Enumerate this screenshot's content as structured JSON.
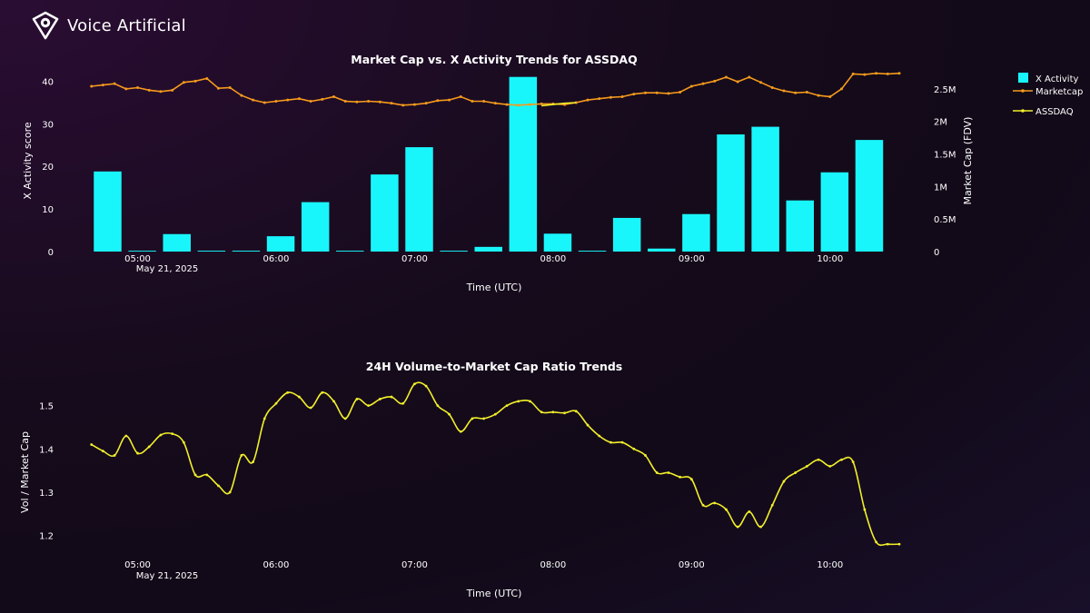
{
  "brand": {
    "name": "Voice Artificial",
    "icon": "voice-artificial-logo-icon"
  },
  "colors": {
    "activity": "#19f6fb",
    "marketcap": "#f59a1c",
    "assdaq": "#f2ef2a",
    "ratio": "#f2ef2a"
  },
  "chart_data": [
    {
      "type": "bar+line",
      "title": "Market Cap vs. X Activity Trends for ASSDAQ",
      "xlabel": "Time (UTC)",
      "ylabel": "X Activity score",
      "y2label": "Market Cap (FDV)",
      "x_ticks": [
        "05:00",
        "06:00",
        "07:00",
        "08:00",
        "09:00",
        "10:00"
      ],
      "x_date_label": "May 21, 2025",
      "y_ticks": [
        0,
        10,
        20,
        30,
        40
      ],
      "y2_ticks": [
        "0",
        "0.5M",
        "1M",
        "1.5M",
        "2M",
        "2.5M"
      ],
      "ylim": [
        0,
        42
      ],
      "y2lim": [
        0,
        2.75
      ],
      "y2_unit": "M",
      "legend": [
        "X Activity",
        "Marketcap",
        "ASSDAQ"
      ],
      "legend_position": "right",
      "x_range": [
        "04:35",
        "10:30"
      ],
      "bars": {
        "name": "X Activity",
        "x": [
          "04:47",
          "05:02",
          "05:17",
          "05:32",
          "05:47",
          "06:02",
          "06:17",
          "06:32",
          "06:47",
          "07:02",
          "07:17",
          "07:32",
          "07:47",
          "08:02",
          "08:17",
          "08:32",
          "08:47",
          "09:02",
          "09:17",
          "09:32",
          "09:47",
          "10:02",
          "10:17"
        ],
        "values": [
          18.8,
          0.2,
          4.1,
          0.2,
          0.2,
          3.6,
          11.6,
          0.2,
          18.1,
          24.5,
          0.2,
          1.1,
          41.0,
          4.2,
          0.2,
          7.9,
          0.7,
          8.8,
          27.5,
          29.3,
          12.0,
          18.6,
          26.2
        ]
      },
      "series": [
        {
          "name": "Marketcap",
          "x": [
            "04:40",
            "04:45",
            "04:50",
            "04:55",
            "05:00",
            "05:05",
            "05:10",
            "05:15",
            "05:20",
            "05:25",
            "05:30",
            "05:35",
            "05:40",
            "05:45",
            "05:50",
            "05:55",
            "06:00",
            "06:05",
            "06:10",
            "06:15",
            "06:20",
            "06:25",
            "06:30",
            "06:35",
            "06:40",
            "06:45",
            "06:50",
            "06:55",
            "07:00",
            "07:05",
            "07:10",
            "07:15",
            "07:20",
            "07:25",
            "07:30",
            "07:35",
            "07:40",
            "07:45",
            "07:50",
            "07:55",
            "08:00",
            "08:05",
            "08:10",
            "08:15",
            "08:20",
            "08:25",
            "08:30",
            "08:35",
            "08:40",
            "08:45",
            "08:50",
            "08:55",
            "09:00",
            "09:05",
            "09:10",
            "09:15",
            "09:20",
            "09:25",
            "09:30",
            "09:35",
            "09:40",
            "09:45",
            "09:50",
            "09:55",
            "10:00",
            "10:05",
            "10:10",
            "10:15",
            "10:20",
            "10:25",
            "10:30"
          ],
          "values": [
            2.54,
            2.56,
            2.58,
            2.5,
            2.52,
            2.48,
            2.46,
            2.48,
            2.6,
            2.62,
            2.66,
            2.51,
            2.52,
            2.4,
            2.33,
            2.29,
            2.31,
            2.33,
            2.35,
            2.31,
            2.34,
            2.38,
            2.31,
            2.3,
            2.31,
            2.3,
            2.28,
            2.25,
            2.26,
            2.28,
            2.32,
            2.33,
            2.38,
            2.31,
            2.31,
            2.28,
            2.26,
            2.25,
            2.26,
            2.27,
            2.27,
            2.26,
            2.29,
            2.33,
            2.35,
            2.37,
            2.38,
            2.42,
            2.44,
            2.44,
            2.43,
            2.45,
            2.54,
            2.58,
            2.62,
            2.68,
            2.61,
            2.68,
            2.6,
            2.52,
            2.47,
            2.44,
            2.45,
            2.4,
            2.38,
            2.5,
            2.73,
            2.72,
            2.74,
            2.73,
            2.74
          ]
        },
        {
          "name": "ASSDAQ",
          "x": [
            "07:55",
            "08:00",
            "08:05",
            "08:10"
          ],
          "values": [
            2.24,
            2.26,
            2.28,
            2.29
          ]
        }
      ]
    },
    {
      "type": "line",
      "title": "24H Volume-to-Market Cap Ratio Trends",
      "xlabel": "Time (UTC)",
      "ylabel": "Vol / Market Cap",
      "x_ticks": [
        "05:00",
        "06:00",
        "07:00",
        "08:00",
        "09:00",
        "10:00"
      ],
      "x_date_label": "May 21, 2025",
      "y_ticks": [
        1.2,
        1.3,
        1.4,
        1.5
      ],
      "ylim": [
        1.17,
        1.56
      ],
      "x_range": [
        "04:35",
        "10:30"
      ],
      "series": [
        {
          "name": "",
          "x": [
            "04:40",
            "04:45",
            "04:50",
            "04:55",
            "05:00",
            "05:05",
            "05:10",
            "05:15",
            "05:20",
            "05:25",
            "05:30",
            "05:35",
            "05:40",
            "05:45",
            "05:50",
            "05:55",
            "06:00",
            "06:05",
            "06:10",
            "06:15",
            "06:20",
            "06:25",
            "06:30",
            "06:35",
            "06:40",
            "06:45",
            "06:50",
            "06:55",
            "07:00",
            "07:05",
            "07:10",
            "07:15",
            "07:20",
            "07:25",
            "07:30",
            "07:35",
            "07:40",
            "07:45",
            "07:50",
            "07:55",
            "08:00",
            "08:05",
            "08:10",
            "08:15",
            "08:20",
            "08:25",
            "08:30",
            "08:35",
            "08:40",
            "08:45",
            "08:50",
            "08:55",
            "09:00",
            "09:05",
            "09:10",
            "09:15",
            "09:20",
            "09:25",
            "09:30",
            "09:35",
            "09:40",
            "09:45",
            "09:50",
            "09:55",
            "10:00",
            "10:05",
            "10:10",
            "10:15",
            "10:20",
            "10:25",
            "10:30"
          ],
          "values": [
            1.41,
            1.395,
            1.385,
            1.43,
            1.39,
            1.405,
            1.432,
            1.435,
            1.415,
            1.34,
            1.34,
            1.315,
            1.3,
            1.385,
            1.37,
            1.47,
            1.505,
            1.53,
            1.52,
            1.495,
            1.53,
            1.51,
            1.47,
            1.515,
            1.5,
            1.515,
            1.52,
            1.505,
            1.55,
            1.545,
            1.5,
            1.48,
            1.44,
            1.47,
            1.47,
            1.48,
            1.5,
            1.51,
            1.51,
            1.485,
            1.485,
            1.483,
            1.487,
            1.455,
            1.43,
            1.415,
            1.415,
            1.4,
            1.385,
            1.345,
            1.345,
            1.335,
            1.33,
            1.27,
            1.275,
            1.26,
            1.22,
            1.255,
            1.22,
            1.27,
            1.325,
            1.345,
            1.36,
            1.375,
            1.36,
            1.375,
            1.37,
            1.26,
            1.185,
            1.18,
            1.18
          ]
        }
      ]
    }
  ]
}
